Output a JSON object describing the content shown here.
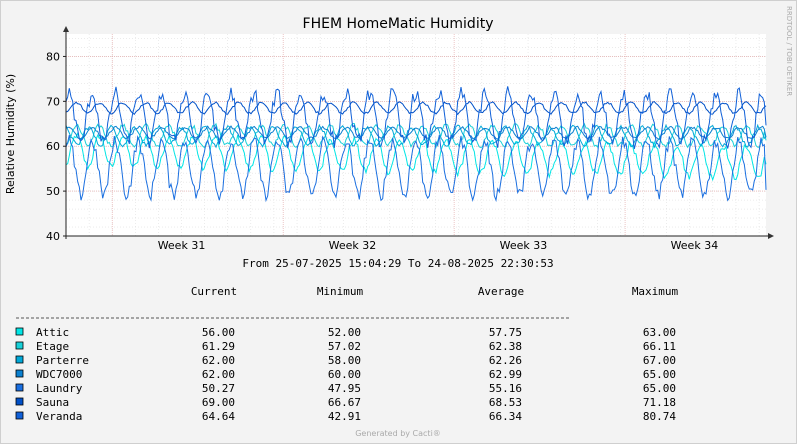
{
  "chart_data": {
    "type": "line",
    "title": "FHEM HomeMatic Humidity",
    "ylabel": "Relative Humidity (%)",
    "ylim": [
      40,
      85
    ],
    "yticks": [
      40,
      50,
      60,
      70,
      80
    ],
    "xlim_days": [
      0,
      30.3
    ],
    "xticks": [
      {
        "label": "Week 31",
        "day": 5.0
      },
      {
        "label": "Week 32",
        "day": 12.4
      },
      {
        "label": "Week 33",
        "day": 19.8
      },
      {
        "label": "Week 34",
        "day": 27.2
      }
    ],
    "period_text": "From 25-07-2025 15:04:29 To 24-08-2025 22:30:53",
    "legend_headers": [
      "Current",
      "Minimum",
      "Average",
      "Maximum"
    ],
    "series": [
      {
        "name": "Attic",
        "color": "#00e5e5",
        "current": "56.00",
        "minimum": "52.00",
        "average": "57.75",
        "maximum": "63.00"
      },
      {
        "name": "Etage",
        "color": "#18d0d8",
        "current": "61.29",
        "minimum": "57.02",
        "average": "62.38",
        "maximum": "66.11"
      },
      {
        "name": "Parterre",
        "color": "#00a8d8",
        "current": "62.00",
        "minimum": "58.00",
        "average": "62.26",
        "maximum": "67.00"
      },
      {
        "name": "WDC7000",
        "color": "#0a80d0",
        "current": "62.00",
        "minimum": "60.00",
        "average": "62.99",
        "maximum": "65.00"
      },
      {
        "name": "Laundry",
        "color": "#1a6fe0",
        "current": "50.27",
        "minimum": "47.95",
        "average": "55.16",
        "maximum": "65.00"
      },
      {
        "name": "Sauna",
        "color": "#0050c8",
        "current": "69.00",
        "minimum": "66.67",
        "average": "68.53",
        "maximum": "71.18"
      },
      {
        "name": "Veranda",
        "color": "#1060d8",
        "current": "64.64",
        "minimum": "42.91",
        "average": "66.34",
        "maximum": "80.74"
      }
    ]
  },
  "watermark": "RRDTOOL / TOBI OETIKER",
  "footer": "Generated by Cacti®"
}
